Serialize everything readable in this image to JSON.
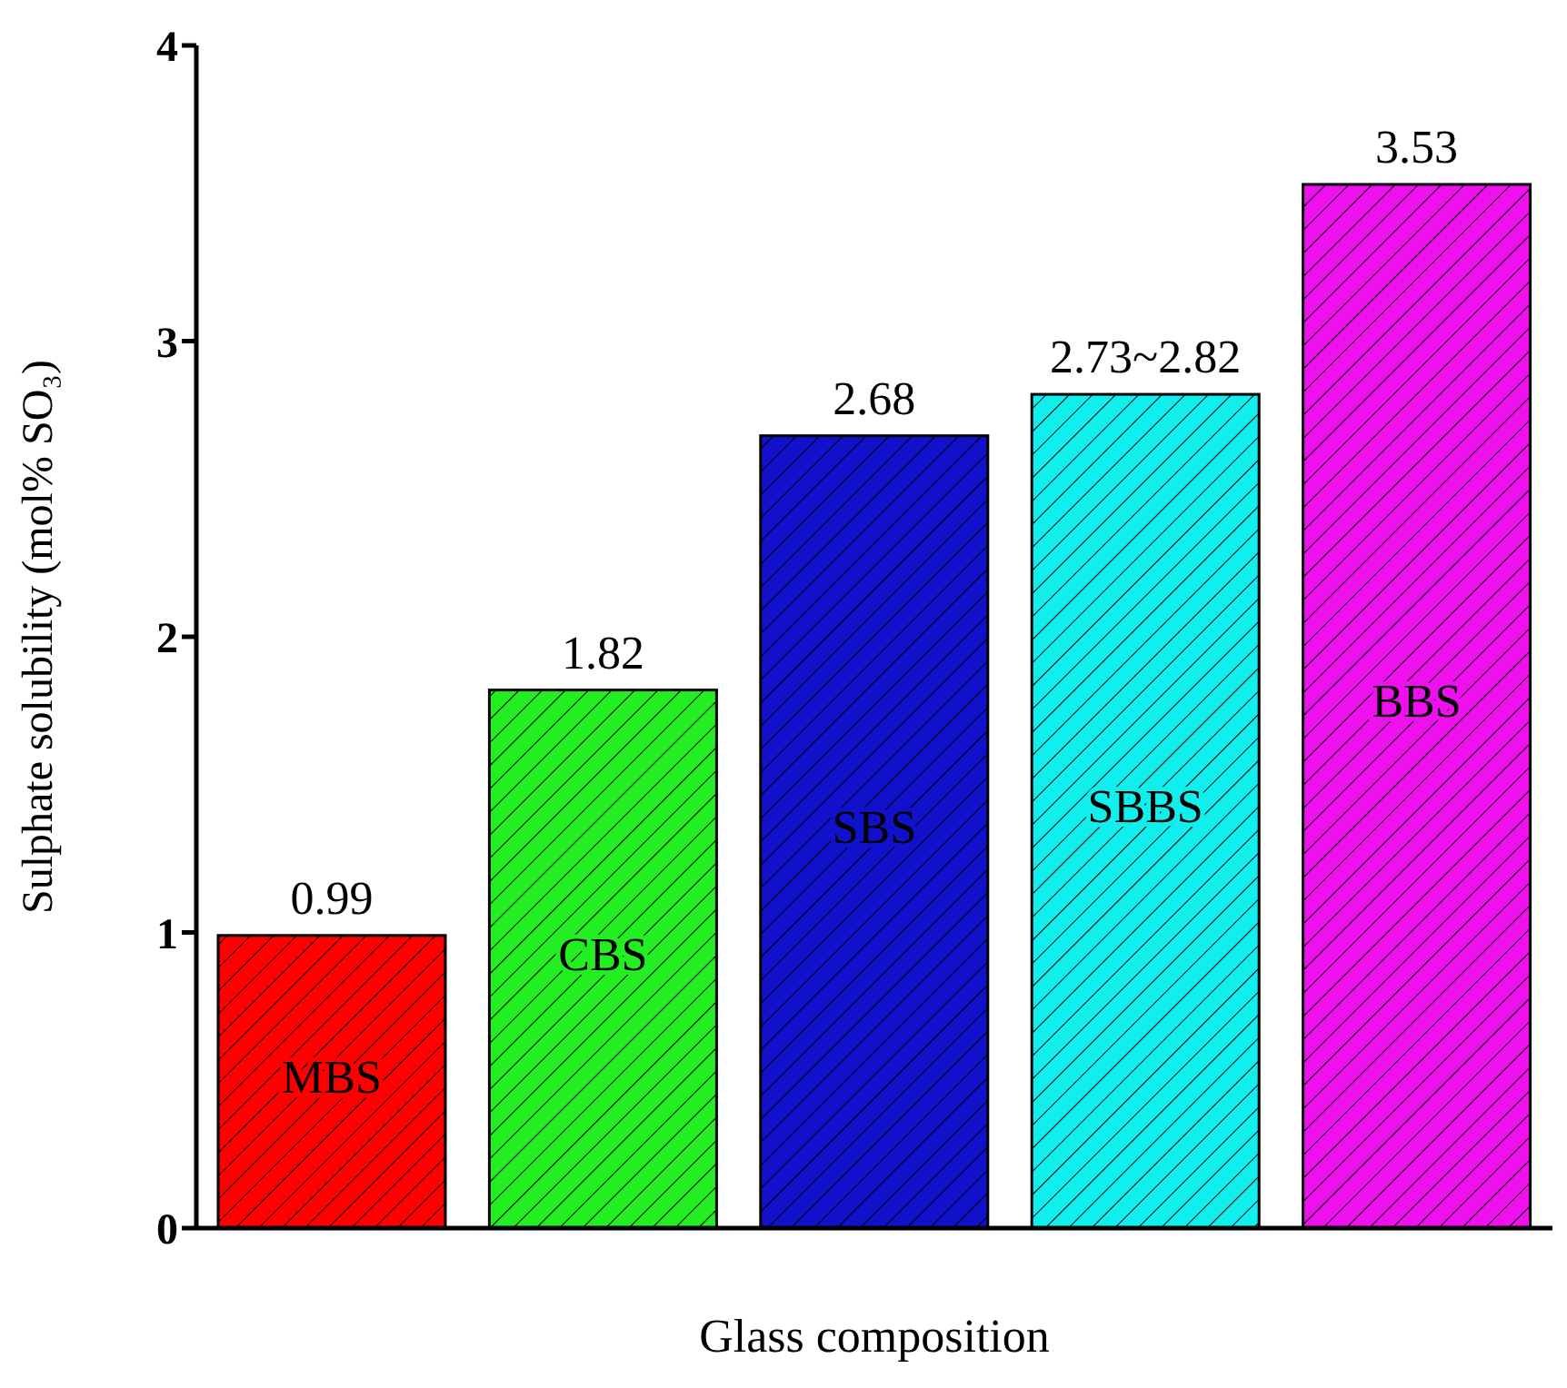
{
  "chart_data": {
    "type": "bar",
    "xlabel": "Glass composition",
    "ylabel": "Sulphate solubility (mol% SO₃)",
    "categories": [
      "MBS",
      "CBS",
      "SBS",
      "SBBS",
      "BBS"
    ],
    "values": [
      0.99,
      1.82,
      2.68,
      2.82,
      3.53
    ],
    "colors": [
      "#ff0000",
      "#22ee22",
      "#1111cc",
      "#11eeee",
      "#ee11ee"
    ],
    "value_labels": [
      "0.99",
      "1.82",
      "2.68",
      "2.73~2.82",
      "3.53"
    ],
    "ylim": [
      0,
      4
    ],
    "yticks": [
      0,
      1,
      2,
      3,
      4
    ],
    "grid": false,
    "legend": false,
    "tick_labels": "y"
  }
}
